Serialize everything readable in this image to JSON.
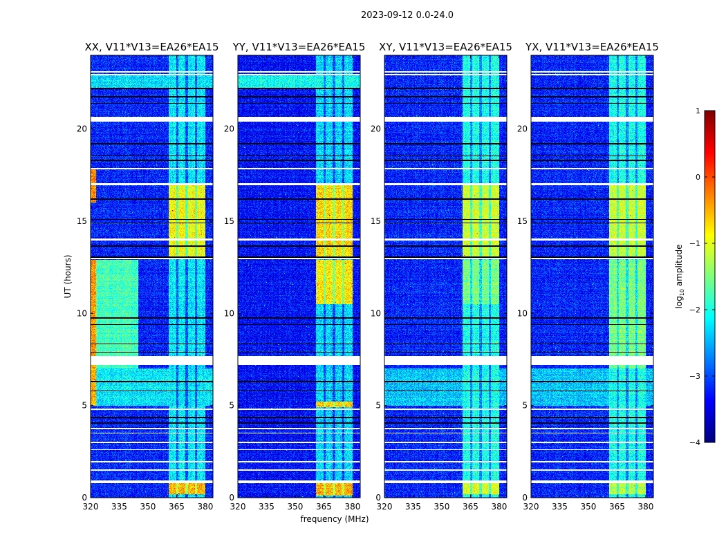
{
  "chart_data": {
    "type": "heatmap",
    "suptitle": "2023-09-12 0.0-24.0",
    "xlabel": "frequency (MHz)",
    "ylabel": "UT (hours)",
    "xlim": [
      320,
      384
    ],
    "ylim": [
      0,
      24
    ],
    "xticks": [
      "320",
      "335",
      "350",
      "365",
      "380"
    ],
    "yticks": [
      "0",
      "5",
      "10",
      "15",
      "20"
    ],
    "colormap": "jet",
    "colorbar": {
      "label": "log10 amplitude",
      "label_main": "log",
      "label_sub": "10",
      "label_rest": " amplitude",
      "clim": [
        -4,
        1
      ],
      "ticks": [
        "1",
        "0",
        "−1",
        "−2",
        "−3",
        "−4"
      ]
    },
    "flagged_times_hours": [
      [
        23.05,
        23.15
      ],
      [
        22.9,
        22.98
      ],
      [
        20.4,
        20.65
      ],
      [
        17.8,
        17.9
      ],
      [
        16.95,
        17.05
      ],
      [
        13.95,
        14.05
      ],
      [
        12.95,
        13.02
      ],
      [
        7.2,
        7.7
      ],
      [
        4.78,
        4.85
      ],
      [
        3.72,
        3.78
      ],
      [
        3.47,
        3.53
      ],
      [
        2.97,
        3.03
      ],
      [
        2.57,
        2.63
      ],
      [
        1.92,
        1.98
      ],
      [
        1.47,
        1.53
      ],
      [
        0.8,
        0.95
      ]
    ],
    "dropout_times_hours": [
      22.2,
      21.75,
      21.4,
      19.2,
      18.55,
      18.3,
      16.2,
      15.1,
      14.9,
      13.65,
      13.05,
      9.75,
      9.4,
      8.35,
      7.9,
      6.3,
      5.8,
      4.35,
      4.05
    ],
    "rfi_band_mhz": [
      361,
      380
    ],
    "channel_gaps_mhz": [
      365.5,
      370.3,
      375.2
    ],
    "panels": [
      {
        "title": "XX, V11*V13=EA26*EA15",
        "base": -3.2,
        "band": -2.2,
        "regions": [
          {
            "t": [
              22.2,
              23.0
            ],
            "f": [
              320,
              384
            ],
            "v": -2.3
          },
          {
            "t": [
              13.1,
              17.0
            ],
            "f": [
              361,
              380
            ],
            "v": -0.9
          },
          {
            "t": [
              0.2,
              0.8
            ],
            "f": [
              361,
              380
            ],
            "v": -0.5
          },
          {
            "t": [
              7.0,
              12.9
            ],
            "f": [
              320,
              345
            ],
            "v": -1.8
          },
          {
            "t": [
              7.0,
              12.9
            ],
            "f": [
              320,
              323
            ],
            "v": -0.4
          },
          {
            "t": [
              5.0,
              7.0
            ],
            "f": [
              320,
              384
            ],
            "v": -2.2
          },
          {
            "t": [
              5.0,
              7.0
            ],
            "f": [
              320,
              323
            ],
            "v": -0.5
          },
          {
            "t": [
              16.0,
              17.8
            ],
            "f": [
              320,
              323
            ],
            "v": -0.3
          }
        ]
      },
      {
        "title": "YY, V11*V13=EA26*EA15",
        "base": -3.3,
        "band": -2.3,
        "regions": [
          {
            "t": [
              22.2,
              23.0
            ],
            "f": [
              320,
              384
            ],
            "v": -2.1
          },
          {
            "t": [
              13.1,
              17.0
            ],
            "f": [
              361,
              380
            ],
            "v": -0.7
          },
          {
            "t": [
              10.5,
              12.9
            ],
            "f": [
              361,
              380
            ],
            "v": -0.8
          },
          {
            "t": [
              4.9,
              5.2
            ],
            "f": [
              361,
              380
            ],
            "v": -0.6
          },
          {
            "t": [
              0.1,
              0.8
            ],
            "f": [
              361,
              380
            ],
            "v": -0.5
          }
        ]
      },
      {
        "title": "XY, V11*V13=EA26*EA15",
        "base": -3.2,
        "band": -2.0,
        "regions": [
          {
            "t": [
              13.1,
              17.0
            ],
            "f": [
              361,
              380
            ],
            "v": -1.1
          },
          {
            "t": [
              10.5,
              12.9
            ],
            "f": [
              361,
              380
            ],
            "v": -1.5
          },
          {
            "t": [
              5.0,
              7.0
            ],
            "f": [
              320,
              384
            ],
            "v": -2.4
          },
          {
            "t": [
              0.2,
              0.8
            ],
            "f": [
              361,
              380
            ],
            "v": -1.0
          }
        ]
      },
      {
        "title": "YX, V11*V13=EA26*EA15",
        "base": -3.2,
        "band": -2.0,
        "regions": [
          {
            "t": [
              13.1,
              17.0
            ],
            "f": [
              361,
              380
            ],
            "v": -1.1
          },
          {
            "t": [
              7.0,
              12.9
            ],
            "f": [
              361,
              380
            ],
            "v": -1.5
          },
          {
            "t": [
              5.0,
              7.0
            ],
            "f": [
              320,
              384
            ],
            "v": -2.4
          },
          {
            "t": [
              0.2,
              0.8
            ],
            "f": [
              361,
              380
            ],
            "v": -1.2
          }
        ]
      }
    ]
  }
}
